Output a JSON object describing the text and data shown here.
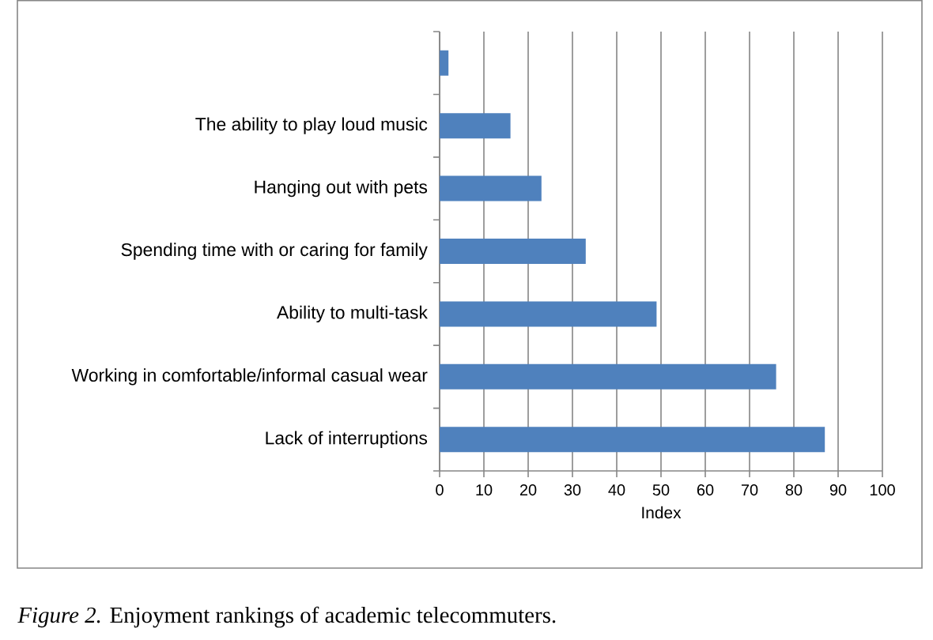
{
  "chart_data": {
    "type": "bar",
    "orientation": "horizontal",
    "categories": [
      null,
      "The ability to play loud music",
      "Hanging out with pets",
      "Spending time with or caring for family",
      "Ability to multi-task",
      "Working in comfortable/informal casual wear",
      "Lack of interruptions"
    ],
    "values": [
      2,
      16,
      23,
      33,
      49,
      76,
      87
    ],
    "color": "#4f81bd",
    "xlabel": "Index",
    "xlim": [
      0,
      100
    ],
    "xticks": [
      0,
      10,
      20,
      30,
      40,
      50,
      60,
      70,
      80,
      90,
      100
    ],
    "grid": "x",
    "annotations": [
      "*Figure 2.* Enjoyment rankings of academic telecommuters."
    ]
  }
}
